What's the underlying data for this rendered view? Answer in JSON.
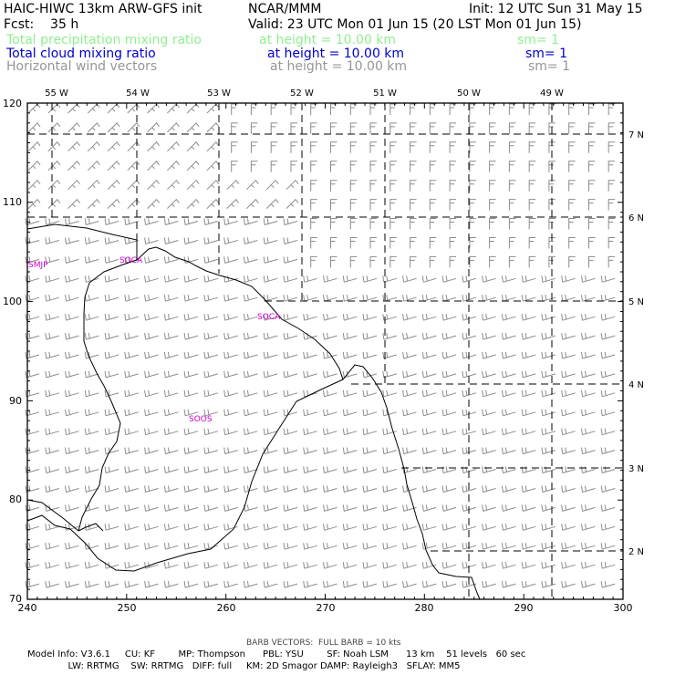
{
  "header": {
    "model": "HAIC-HIWC 13km ARW-GFS init",
    "org": "NCAR/MMM",
    "init": "Init: 12 UTC Sun 31 May 15",
    "fcst": "Fcst:    35 h",
    "valid": "Valid: 23 UTC Mon 01 Jun 15 (20 LST Mon 01 Jun 15)",
    "fields": [
      {
        "name": "Total precipitation mixing ratio",
        "height": "at height = 10.00 km",
        "sm": "sm= 1",
        "color": "#90ee90"
      },
      {
        "name": "Total cloud mixing ratio",
        "height": "at height = 10.00 km",
        "sm": "sm= 1",
        "color": "#0000cd"
      },
      {
        "name": "Horizontal wind vectors",
        "height": "at height = 10.00 km",
        "sm": "sm= 1",
        "color": "#969696"
      }
    ]
  },
  "map": {
    "y_ticks": [
      "120",
      "110",
      "100",
      "90",
      "80",
      "70"
    ],
    "x_ticks": [
      "240",
      "250",
      "260",
      "270",
      "280",
      "290",
      "300"
    ],
    "lon_labels": [
      "55 W",
      "54 W",
      "53 W",
      "52 W",
      "51 W",
      "50 W",
      "49 W"
    ],
    "lat_labels": [
      "7 N",
      "6 N",
      "5 N",
      "4 N",
      "3 N",
      "2 N"
    ],
    "stations": [
      "SMJP",
      "SOCA",
      "SOCA",
      "SOOS"
    ],
    "station_color": "#cc00cc",
    "barb_color": "#8c8c8c"
  },
  "footer": {
    "barb_note": "BARB VECTORS:  FULL BARB = 10 kts",
    "line1": "Model Info: V3.6.1     CU: KF        MP: Thompson      PBL: YSU        SF: Noah LSM      13 km    51 levels   60 sec",
    "line2": "              LW: RRTMG    SW: RRTMG   DIFF: full     KM: 2D Smagor DAMP: Rayleigh3   SFLAY: MM5"
  }
}
